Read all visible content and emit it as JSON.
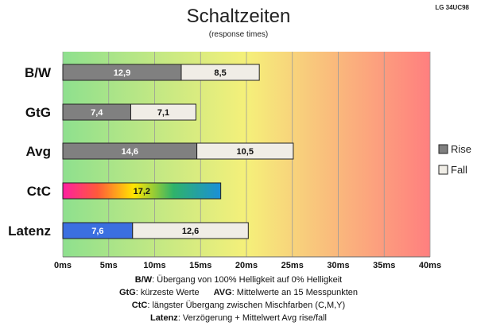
{
  "chart_data": {
    "type": "bar",
    "stacked": true,
    "orientation": "horizontal",
    "title": "Schaltzeiten",
    "subtitle": "(response times)",
    "model": "LG 34UC98",
    "categories": [
      "B/W",
      "GtG",
      "Avg",
      "CtC",
      "Latenz"
    ],
    "series": [
      {
        "name": "Rise",
        "color": "#808080",
        "values": [
          12.9,
          7.4,
          14.6,
          17.2,
          7.6
        ]
      },
      {
        "name": "Fall",
        "color": "#f0ede6",
        "values": [
          8.5,
          7.1,
          10.5,
          null,
          12.6
        ]
      }
    ],
    "value_labels": {
      "Rise": [
        "12,9",
        "7,4",
        "14,6",
        "17,2",
        "7,6"
      ],
      "Fall": [
        "8,5",
        "7,1",
        "10,5",
        "",
        "12,6"
      ]
    },
    "special_fills": {
      "CtC": "rainbow",
      "Latenz": "#3b6fe0"
    },
    "xlim": [
      0,
      40
    ],
    "xticks": [
      0,
      5,
      10,
      15,
      20,
      25,
      30,
      35,
      40
    ],
    "xtick_labels": [
      "0ms",
      "5ms",
      "10ms",
      "15ms",
      "20ms",
      "25ms",
      "30ms",
      "35ms",
      "40ms"
    ],
    "legend": {
      "position": "right",
      "entries": [
        "Rise",
        "Fall"
      ]
    },
    "background_gradient": [
      "#8ee08e",
      "#f5f07a",
      "#ff7f7f"
    ],
    "grid": true
  },
  "notes": [
    {
      "key": "B/W",
      "text": ":  Übergang von 100% Helligkeit auf 0% Helligkeit"
    },
    {
      "key": "GtG",
      "text": ": kürzeste  Werte",
      "key2": "AVG",
      "text2": ": Mittelwerte  an 15 Messpunkten"
    },
    {
      "key": "CtC",
      "text": ": längster Übergang  zwischen Mischfarben (C,M,Y)"
    },
    {
      "key": "Latenz",
      "text": ": Verzögerung  + Mittelwert  Avg rise/fall"
    }
  ]
}
